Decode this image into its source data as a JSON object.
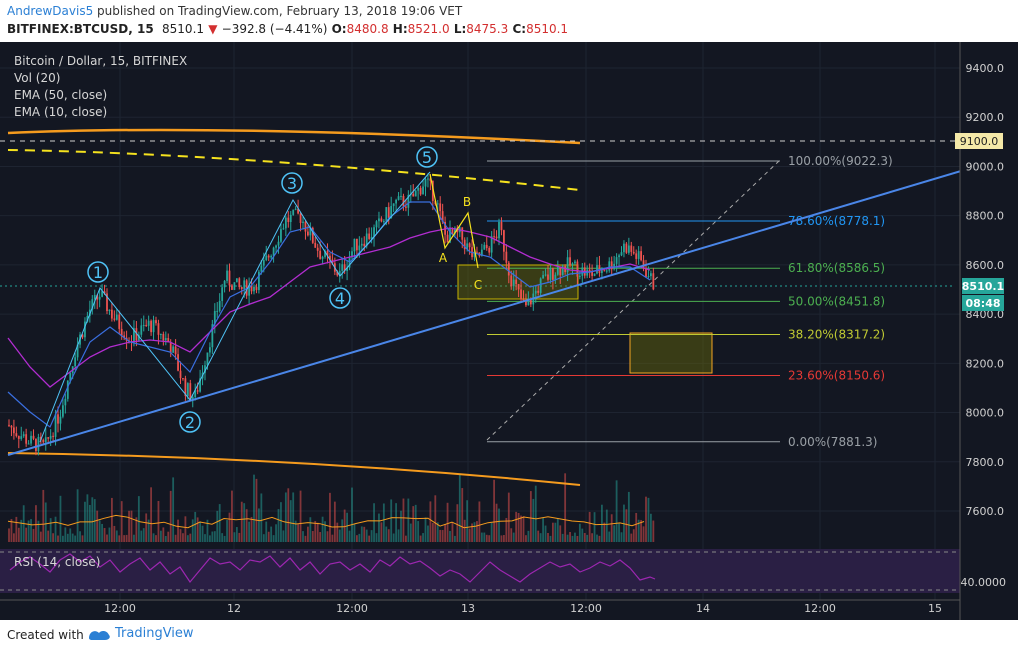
{
  "header": {
    "user": "AndrewDavis5",
    "published_text": "published on TradingView.com, February 13, 2018 19:06 VET",
    "symbol": "BITFINEX:BTCUSD, 15",
    "last": "8510.1",
    "change": "−392.8 (−4.41%)",
    "o_label": "O:",
    "o_value": "8480.8",
    "h_label": "H:",
    "h_value": "8521.0",
    "l_label": "L:",
    "l_value": "8475.3",
    "c_label": "C:",
    "c_value": "8510.1"
  },
  "legend": {
    "title": "Bitcoin / Dollar, 15, BITFINEX",
    "vol": "Vol (20)",
    "ema50": "EMA (50, close)",
    "ema10": "EMA (10, close)"
  },
  "rsi": {
    "label": "RSI (14, close)",
    "value": "40.0000"
  },
  "footer": {
    "created_with": "Created with",
    "brand": "TradingView"
  },
  "colors": {
    "background": "#131722",
    "up": "#26a69a",
    "down": "#ef5350",
    "trendline": "#4a86e8",
    "orange": "#f59b1e",
    "yellow": "#f5e21e",
    "ema50": "#b22dd1",
    "ema10": "#3a6fe0",
    "wave": "#4fc3f7"
  },
  "chart_data": {
    "type": "candlestick",
    "price_axis": {
      "ticks": [
        "9400.0",
        "9200.0",
        "9000.0",
        "8800.0",
        "8600.0",
        "8400.0",
        "8200.0",
        "8000.0",
        "7800.0",
        "7600.0"
      ],
      "range": [
        7500,
        9500
      ]
    },
    "time_axis": {
      "ticks": [
        "12:00",
        "12",
        "12:00",
        "13",
        "12:00",
        "14",
        "12:00",
        "15"
      ]
    },
    "price_labels": {
      "level_9100": "9100.0",
      "last_price": "8510.1",
      "countdown": "08:48"
    },
    "fibonacci": [
      {
        "label": "100.00%(9022.3)",
        "price": 9022.3,
        "color": "#9aa0a6"
      },
      {
        "label": "78.60%(8778.1)",
        "price": 8778.1,
        "color": "#2196f3"
      },
      {
        "label": "61.80%(8586.5)",
        "price": 8586.5,
        "color": "#4caf50"
      },
      {
        "label": "50.00%(8451.8)",
        "price": 8451.8,
        "color": "#4caf50"
      },
      {
        "label": "38.20%(8317.2)",
        "price": 8317.2,
        "color": "#c0ca33"
      },
      {
        "label": "23.60%(8150.6)",
        "price": 8150.6,
        "color": "#e53935"
      },
      {
        "label": "0.00%(7881.3)",
        "price": 7881.3,
        "color": "#9aa0a6"
      }
    ],
    "wave_labels": [
      "1",
      "2",
      "3",
      "4",
      "5"
    ],
    "abc_labels": [
      "A",
      "B",
      "C"
    ]
  }
}
